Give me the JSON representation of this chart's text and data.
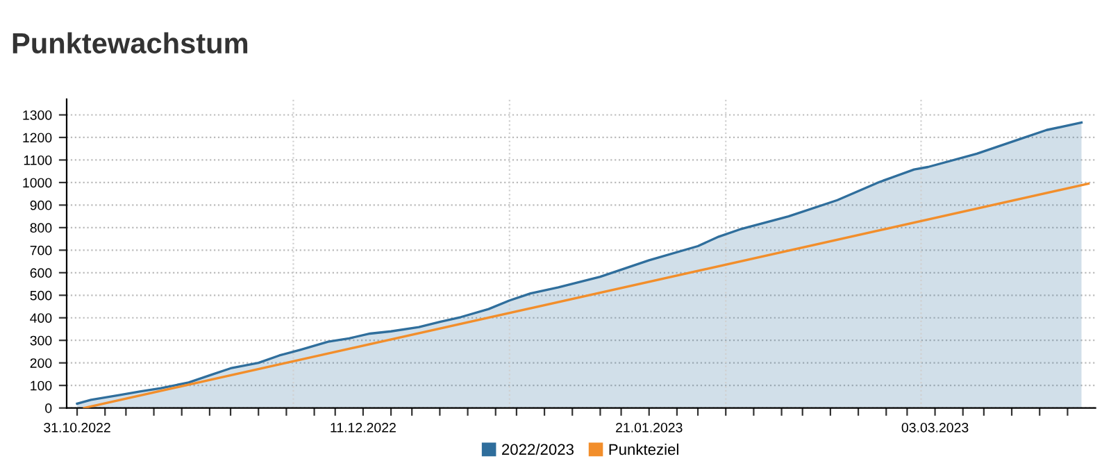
{
  "chart_data": {
    "type": "area",
    "title": "Punktewachstum",
    "x": [
      "2022-10-31",
      "2022-11-02",
      "2022-11-06",
      "2022-11-09",
      "2022-11-12",
      "2022-11-16",
      "2022-11-19",
      "2022-11-22",
      "2022-11-26",
      "2022-11-29",
      "2022-12-02",
      "2022-12-06",
      "2022-12-09",
      "2022-12-12",
      "2022-12-15",
      "2022-12-19",
      "2022-12-22",
      "2022-12-25",
      "2022-12-29",
      "2023-01-01",
      "2023-01-04",
      "2023-01-08",
      "2023-01-14",
      "2023-01-21",
      "2023-01-28",
      "2023-01-31",
      "2023-02-03",
      "2023-02-10",
      "2023-02-17",
      "2023-02-23",
      "2023-02-28",
      "2023-03-02",
      "2023-03-09",
      "2023-03-15",
      "2023-03-19",
      "2023-03-24"
    ],
    "series": [
      {
        "name": "2022/2023",
        "color": "#2f6e9c",
        "values": [
          19,
          36,
          57,
          73,
          88,
          113,
          145,
          176,
          200,
          233,
          258,
          294,
          309,
          330,
          340,
          359,
          382,
          403,
          439,
          477,
          508,
          535,
          582,
          655,
          718,
          760,
          792,
          850,
          922,
          1002,
          1058,
          1069,
          1128,
          1191,
          1233,
          1266
        ]
      },
      {
        "name": "Punkteziel",
        "type": "line",
        "color": "#f28e2b",
        "x": [
          "2022-11-01",
          "2023-03-25"
        ],
        "values": [
          0,
          995
        ]
      }
    ],
    "xlim": [
      "2022-10-29T12:00",
      "2023-03-26"
    ],
    "xticks": [
      {
        "value": "2022-10-31",
        "label": "31.10.2022"
      },
      {
        "value": "2022-11-04",
        "label": null
      },
      {
        "value": "2022-11-07",
        "label": null
      },
      {
        "value": "2022-11-11",
        "label": null
      },
      {
        "value": "2022-11-15",
        "label": null
      },
      {
        "value": "2022-11-19",
        "label": null
      },
      {
        "value": "2022-11-22",
        "label": null
      },
      {
        "value": "2022-11-26",
        "label": null
      },
      {
        "value": "2022-11-30",
        "label": null
      },
      {
        "value": "2022-12-04",
        "label": null
      },
      {
        "value": "2022-12-07",
        "label": null
      },
      {
        "value": "2022-12-11",
        "label": "11.12.2022"
      },
      {
        "value": "2022-12-15",
        "label": null
      },
      {
        "value": "2022-12-18",
        "label": null
      },
      {
        "value": "2022-12-22",
        "label": null
      },
      {
        "value": "2022-12-26",
        "label": null
      },
      {
        "value": "2022-12-30",
        "label": null
      },
      {
        "value": "2023-01-02",
        "label": null
      },
      {
        "value": "2023-01-06",
        "label": null
      },
      {
        "value": "2023-01-10",
        "label": null
      },
      {
        "value": "2023-01-14",
        "label": null
      },
      {
        "value": "2023-01-17",
        "label": null
      },
      {
        "value": "2023-01-21",
        "label": "21.01.2023"
      },
      {
        "value": "2023-01-25",
        "label": null
      },
      {
        "value": "2023-01-28",
        "label": null
      },
      {
        "value": "2023-02-01",
        "label": null
      },
      {
        "value": "2023-02-05",
        "label": null
      },
      {
        "value": "2023-02-09",
        "label": null
      },
      {
        "value": "2023-02-12",
        "label": null
      },
      {
        "value": "2023-02-16",
        "label": null
      },
      {
        "value": "2023-02-20",
        "label": null
      },
      {
        "value": "2023-02-24",
        "label": null
      },
      {
        "value": "2023-02-27",
        "label": null
      },
      {
        "value": "2023-03-03",
        "label": "03.03.2023"
      },
      {
        "value": "2023-03-07",
        "label": null
      },
      {
        "value": "2023-03-10",
        "label": null
      },
      {
        "value": "2023-03-14",
        "label": null
      },
      {
        "value": "2023-03-18",
        "label": null
      },
      {
        "value": "2023-03-22",
        "label": null
      }
    ],
    "ylim": [
      0,
      1370
    ],
    "yticks": [
      0,
      100,
      200,
      300,
      400,
      500,
      600,
      700,
      800,
      900,
      1000,
      1100,
      1200,
      1300
    ],
    "ref_lines": [
      {
        "axis": "x",
        "value": "2022-12-01",
        "color": "#d0d0d0",
        "line_style": "dotted"
      },
      {
        "axis": "x",
        "value": "2023-01-01",
        "color": "#d0d0d0",
        "line_style": "dotted"
      },
      {
        "axis": "x",
        "value": "2023-02-01",
        "color": "#d0d0d0",
        "line_style": "dotted"
      },
      {
        "axis": "x",
        "value": "2023-03-01",
        "color": "#d0d0d0",
        "line_style": "dotted"
      }
    ],
    "grid": "y",
    "legend": "bottom"
  }
}
